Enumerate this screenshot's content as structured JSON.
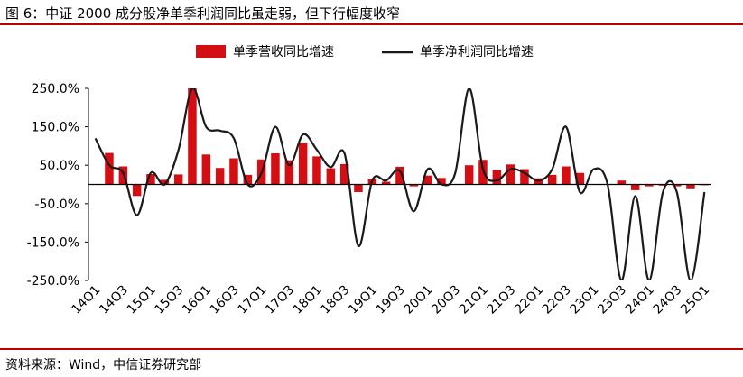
{
  "title": "图 6：中证 2000 成分股净单季利润同比虽走弱，但下行幅度收窄",
  "source": "资料来源：Wind，中信证券研究部",
  "colors": {
    "bar": "#d40f14",
    "line": "#1a1a1a",
    "rule": "#c00000"
  },
  "chart_data": {
    "type": "bar+line",
    "legend_position": "top",
    "grid": false,
    "ylim": [
      -250,
      250
    ],
    "yticks": [
      "250.0%",
      "150.0%",
      "50.0%",
      "-50.0%",
      "-150.0%",
      "-250.0%"
    ],
    "ytick_values": [
      250,
      150,
      50,
      -50,
      -150,
      -250
    ],
    "categories": [
      "14Q1",
      "14Q2",
      "14Q3",
      "14Q4",
      "15Q1",
      "15Q2",
      "15Q3",
      "15Q4",
      "16Q1",
      "16Q2",
      "16Q3",
      "16Q4",
      "17Q1",
      "17Q2",
      "17Q3",
      "17Q4",
      "18Q1",
      "18Q2",
      "18Q3",
      "18Q4",
      "19Q1",
      "19Q2",
      "19Q3",
      "19Q4",
      "20Q1",
      "20Q2",
      "20Q3",
      "20Q4",
      "21Q1",
      "21Q2",
      "21Q3",
      "21Q4",
      "22Q1",
      "22Q2",
      "22Q3",
      "22Q4",
      "23Q1",
      "23Q2",
      "23Q3",
      "23Q4",
      "24Q1",
      "24Q2",
      "24Q3",
      "24Q4",
      "25Q1"
    ],
    "xtick_labels": [
      "14Q1",
      "14Q3",
      "15Q1",
      "15Q3",
      "16Q1",
      "16Q3",
      "17Q1",
      "17Q3",
      "18Q1",
      "18Q3",
      "19Q1",
      "19Q3",
      "20Q1",
      "20Q3",
      "21Q1",
      "21Q3",
      "22Q1",
      "22Q3",
      "23Q1",
      "23Q3",
      "24Q1",
      "24Q3",
      "25Q1"
    ],
    "series": [
      {
        "name": "单季营收同比增速",
        "kind": "bar",
        "values": [
          0,
          82,
          47,
          -30,
          27,
          12,
          26,
          250,
          78,
          43,
          68,
          25,
          65,
          81,
          63,
          108,
          73,
          42,
          53,
          -20,
          15,
          7,
          46,
          -5,
          23,
          17,
          0,
          50,
          64,
          38,
          52,
          40,
          16,
          25,
          47,
          30,
          0,
          0,
          10,
          -15,
          -5,
          -3,
          -5,
          -10,
          -2
        ]
      },
      {
        "name": "单季净利润同比增速",
        "kind": "line",
        "values": [
          120,
          50,
          30,
          -80,
          30,
          0,
          90,
          250,
          150,
          140,
          120,
          0,
          30,
          150,
          50,
          130,
          90,
          45,
          80,
          -160,
          10,
          10,
          35,
          -70,
          40,
          0,
          30,
          250,
          40,
          10,
          40,
          30,
          10,
          40,
          150,
          -20,
          40,
          0,
          -250,
          -30,
          -250,
          -20,
          -20,
          -260,
          -20
        ]
      }
    ]
  }
}
